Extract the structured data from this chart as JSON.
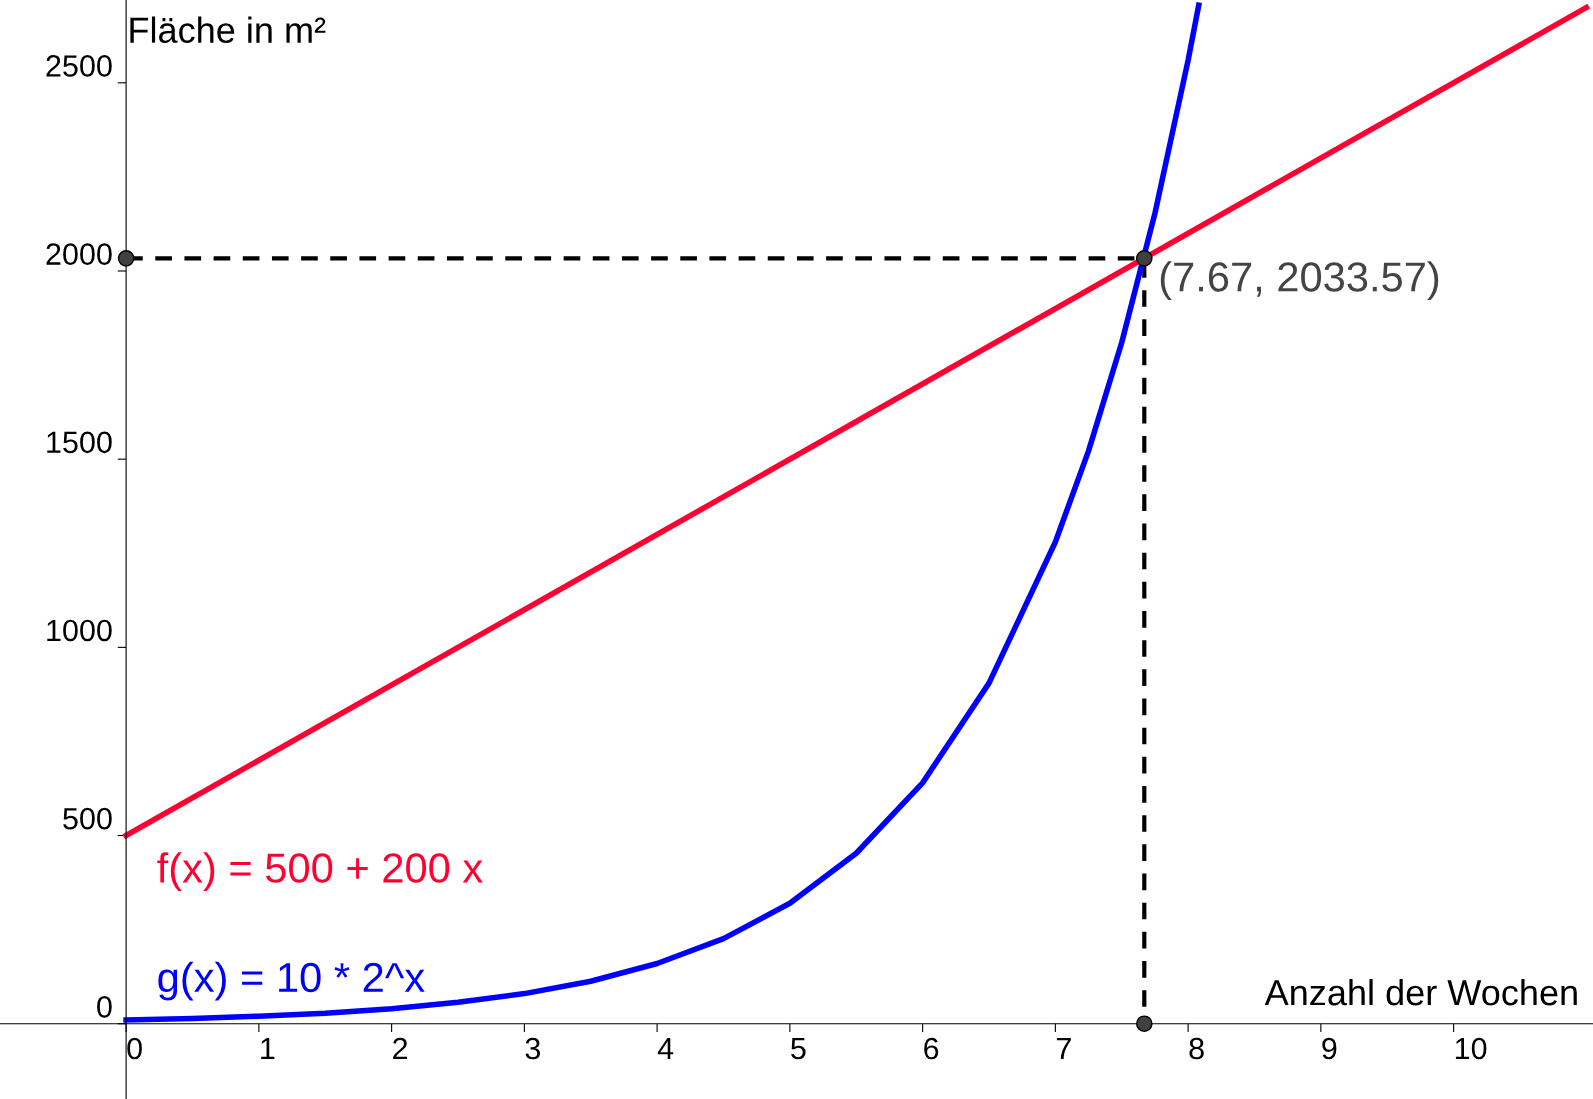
{
  "chart_data": {
    "type": "line",
    "xlabel": "Anzahl der Wochen",
    "ylabel": "Fläche in m²",
    "xlim": [
      -0.95,
      11.05
    ],
    "ylim": [
      -200,
      2720
    ],
    "xticks": [
      0,
      1,
      2,
      3,
      4,
      5,
      6,
      7,
      8,
      9,
      10
    ],
    "yticks": [
      0,
      500,
      1000,
      1500,
      2000,
      2500
    ],
    "grid": false,
    "legend": false,
    "series": [
      {
        "name": "f(x) = 500 + 200 x",
        "color": "#ff0033",
        "x": [
          0,
          11
        ],
        "values": [
          500,
          2700
        ]
      },
      {
        "name": "g(x) = 10 * 2^x",
        "color": "#0000ff",
        "x": [
          0,
          0.5,
          1,
          1.5,
          2,
          2.5,
          3,
          3.5,
          4,
          4.5,
          5,
          5.5,
          6,
          6.5,
          7,
          7.25,
          7.5,
          7.75,
          8,
          8.08
        ],
        "values": [
          10,
          14,
          20,
          28,
          40,
          57,
          80,
          113,
          160,
          226,
          320,
          453,
          640,
          905,
          1280,
          1522,
          1810,
          2153,
          2560,
          2706
        ]
      },
      {
        "color": "#000000",
        "line_style": "dashed",
        "x": [
          0,
          7.67,
          7.67
        ],
        "values": [
          2033.57,
          2033.57,
          0
        ]
      },
      {
        "type": "scatter",
        "color": "#404040",
        "marker": "circle",
        "x": [
          0,
          7.67,
          7.67
        ],
        "values": [
          2033.57,
          2033.57,
          0
        ]
      }
    ],
    "annotations": [
      {
        "text": "(7.67, 2033.57)",
        "x": 7.67,
        "y": 2033.57
      }
    ]
  }
}
